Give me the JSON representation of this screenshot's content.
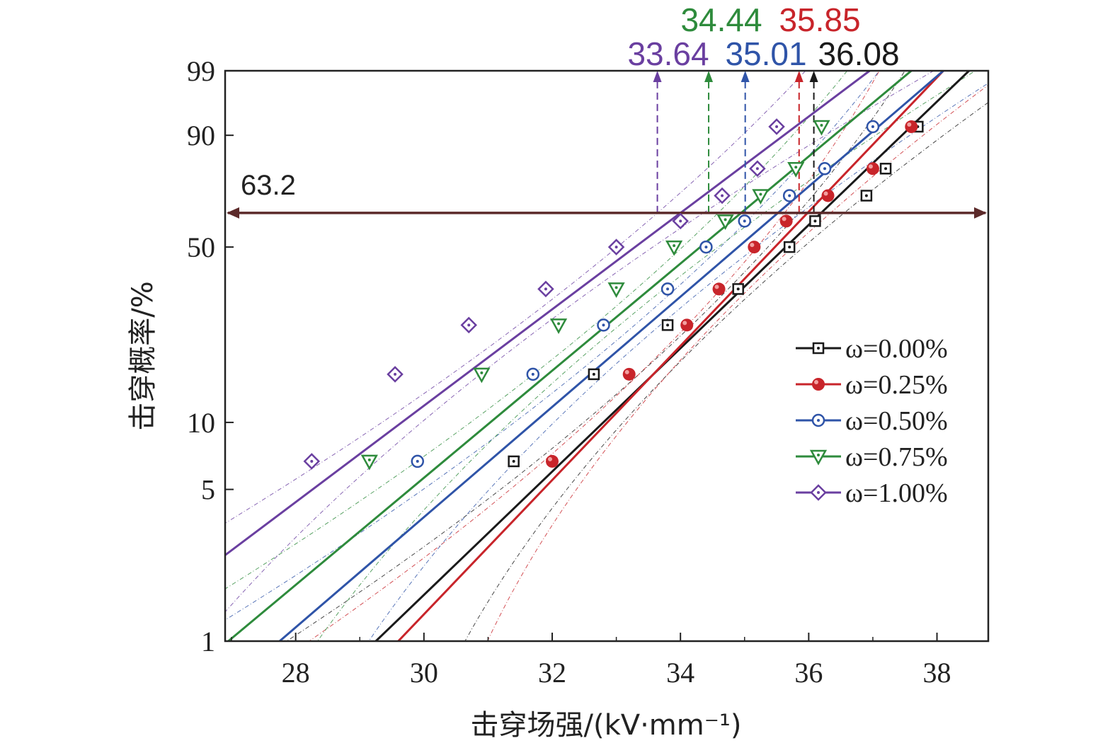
{
  "chart_data": {
    "type": "scatter",
    "title": "",
    "xlabel": "击穿场强/(kV·mm⁻¹)",
    "ylabel": "击穿概率/%",
    "xlim": [
      26.9,
      38.8
    ],
    "ylim": [
      1,
      99
    ],
    "y_scale": "weibull-probability",
    "x_ticks": [
      28,
      30,
      32,
      34,
      36,
      38
    ],
    "y_ticks": [
      1,
      5,
      10,
      50,
      90,
      99
    ],
    "x_tick_labels": [
      "28",
      "30",
      "32",
      "34",
      "36",
      "38"
    ],
    "y_tick_labels": [
      "1",
      "5",
      "10",
      "50",
      "90",
      "99"
    ],
    "grid": false,
    "legend_position": "right",
    "reference_line": {
      "label": "63.2",
      "y": 63.2
    },
    "series": [
      {
        "name": "ω=0.00%",
        "color": "#1a1a1a",
        "marker": "square-dot",
        "x": [
          31.4,
          32.65,
          33.8,
          34.9,
          35.7,
          36.1,
          36.9,
          37.2,
          37.7
        ],
        "y": [
          6.7,
          16.2,
          25.9,
          35.7,
          50.0,
          60.0,
          70.0,
          80.0,
          92.0
        ],
        "fit_line": {
          "x": [
            29.25,
            38.5
          ],
          "y": [
            1.0,
            99.0
          ]
        },
        "annotation_value": "36.08",
        "annotation_x": 36.08
      },
      {
        "name": "ω=0.25%",
        "color": "#c8242a",
        "marker": "filled-circle",
        "x": [
          32.0,
          33.2,
          34.1,
          34.6,
          35.15,
          35.65,
          36.3,
          37.0,
          37.6
        ],
        "y": [
          6.7,
          16.2,
          25.9,
          35.7,
          50.0,
          60.0,
          70.0,
          80.0,
          92.0
        ],
        "fit_line": {
          "x": [
            29.6,
            38.1
          ],
          "y": [
            1.0,
            99.0
          ]
        },
        "annotation_value": "35.85",
        "annotation_x": 35.85
      },
      {
        "name": "ω=0.50%",
        "color": "#2f54a8",
        "marker": "circle-dot",
        "x": [
          29.9,
          31.7,
          32.8,
          33.8,
          34.4,
          35.0,
          35.7,
          36.25,
          37.0
        ],
        "y": [
          6.7,
          16.2,
          25.9,
          35.7,
          50.0,
          60.0,
          70.0,
          80.0,
          92.0
        ],
        "fit_line": {
          "x": [
            27.75,
            38.1
          ],
          "y": [
            1.0,
            99.0
          ]
        },
        "annotation_value": "35.01",
        "annotation_x": 35.01
      },
      {
        "name": "ω=0.75%",
        "color": "#2e8b3c",
        "marker": "triangle-down-dot",
        "x": [
          29.15,
          30.9,
          32.1,
          33.0,
          33.9,
          34.7,
          35.25,
          35.8,
          36.2
        ],
        "y": [
          6.7,
          16.2,
          25.9,
          35.7,
          50.0,
          60.0,
          70.0,
          80.0,
          92.0
        ],
        "fit_line": {
          "x": [
            26.95,
            37.6
          ],
          "y": [
            1.0,
            99.0
          ]
        },
        "annotation_value": "34.44",
        "annotation_x": 34.44
      },
      {
        "name": "ω=1.00%",
        "color": "#6a3fa0",
        "marker": "diamond-dot",
        "x": [
          28.25,
          29.55,
          30.7,
          31.9,
          33.0,
          34.0,
          34.65,
          35.2,
          35.5
        ],
        "y": [
          6.7,
          16.2,
          25.9,
          35.7,
          50.0,
          60.0,
          70.0,
          80.0,
          92.0
        ],
        "fit_line": {
          "x": [
            26.9,
            36.95
          ],
          "y": [
            2.5,
            99.0
          ]
        },
        "annotation_value": "33.64",
        "annotation_x": 33.64
      }
    ]
  }
}
